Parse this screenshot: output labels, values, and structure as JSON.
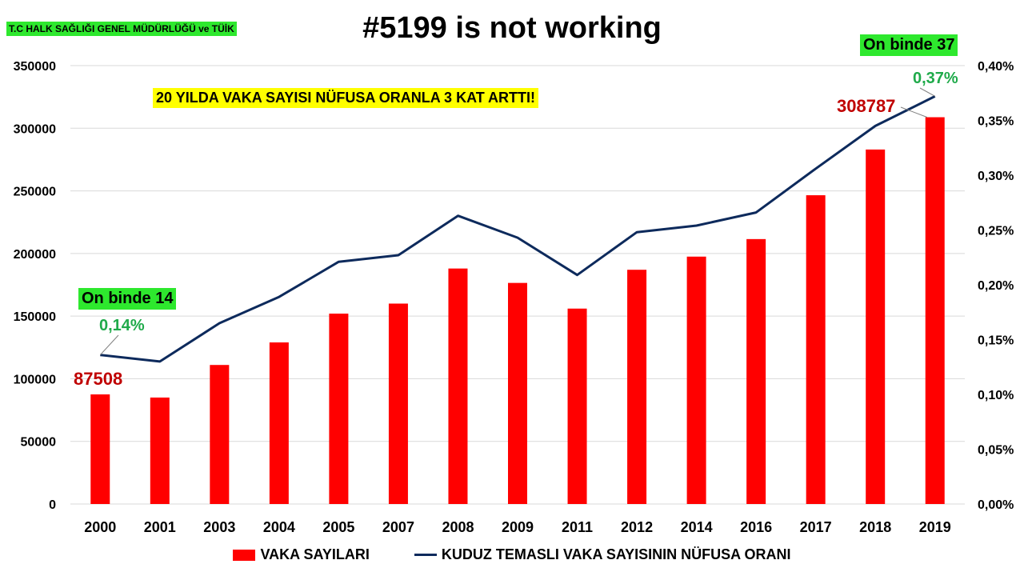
{
  "header": {
    "source": "T.C HALK SAĞLIĞI GENEL MÜDÜRLÜĞÜ  ve TÜİK",
    "title": "#5199 is not working",
    "subtitle": "20 YILDA VAKA SAYISI NÜFUSA ORANLA 3 KAT ARTTI!"
  },
  "annotations": {
    "start_badge": "On binde 14",
    "start_pct": "0,14%",
    "start_value": "87508",
    "end_badge": "On binde 37",
    "end_pct": "0,37%",
    "end_value": "308787"
  },
  "legend": {
    "bars": "VAKA SAYILARI",
    "line": "KUDUZ TEMASLI VAKA SAYISININ NÜFUSA ORANI"
  },
  "colors": {
    "bars": "#ff0000",
    "line": "#0d2a5c",
    "badge": "#2ee82e",
    "highlight": "#ffff00",
    "pct_text": "#1faa4a",
    "value_text": "#c00000",
    "grid": "#d9d9d9"
  },
  "chart_data": {
    "type": "bar",
    "categories": [
      "2000",
      "2001",
      "2003",
      "2004",
      "2005",
      "2007",
      "2008",
      "2009",
      "2011",
      "2012",
      "2014",
      "2016",
      "2017",
      "2018",
      "2019"
    ],
    "series": [
      {
        "name": "VAKA SAYILARI",
        "type": "bar",
        "axis": "left",
        "values": [
          87508,
          85000,
          111000,
          129000,
          152000,
          160000,
          188000,
          176500,
          156000,
          187000,
          197500,
          211500,
          246500,
          283000,
          308787
        ]
      },
      {
        "name": "KUDUZ TEMASLI VAKA SAYISININ NÜFUSA ORANI",
        "type": "line",
        "axis": "right",
        "values": [
          0.136,
          0.13,
          0.165,
          0.189,
          0.221,
          0.227,
          0.263,
          0.243,
          0.209,
          0.248,
          0.254,
          0.266,
          0.306,
          0.345,
          0.372
        ]
      }
    ],
    "ylim": [
      0,
      350000
    ],
    "y_ticks": [
      "0",
      "50000",
      "100000",
      "150000",
      "200000",
      "250000",
      "300000",
      "350000"
    ],
    "y2lim": [
      0,
      0.4
    ],
    "y2_ticks": [
      "0,00%",
      "0,05%",
      "0,10%",
      "0,15%",
      "0,20%",
      "0,25%",
      "0,30%",
      "0,35%",
      "0,40%"
    ],
    "grid": true,
    "legend_position": "bottom"
  }
}
